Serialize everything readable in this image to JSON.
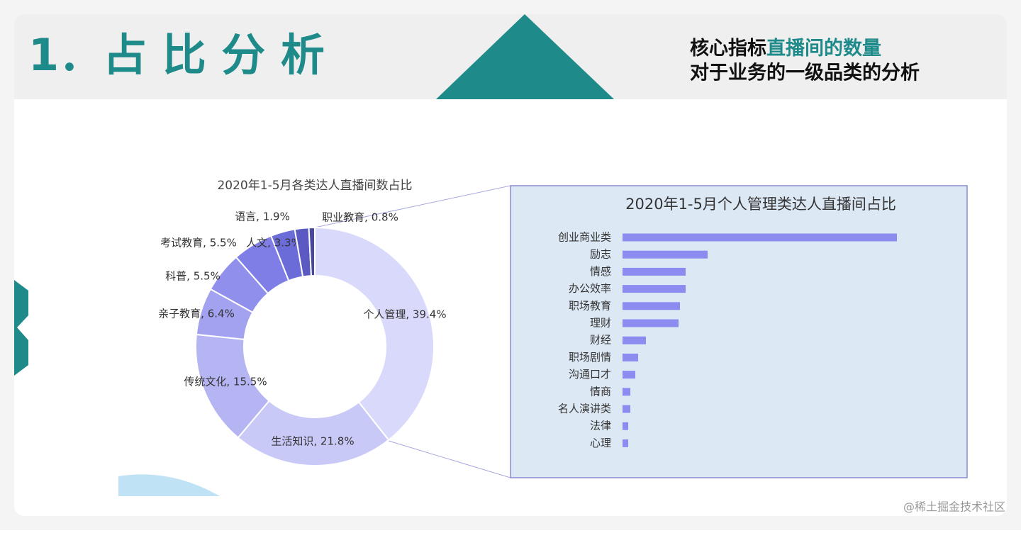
{
  "slide": {
    "title": "1．占 比 分 析",
    "subtitle_lead": "核心指标",
    "subtitle_highlight": "直播间的数量",
    "subtitle_line2": "对于业务的一级品类的分析",
    "watermark": "@稀土掘金技术社区"
  },
  "chart_data": [
    {
      "type": "pie",
      "title": "2020年1-5月各类达人直播间数占比",
      "values": [
        39.4,
        21.8,
        15.5,
        6.4,
        5.5,
        5.5,
        3.3,
        1.9,
        0.8
      ],
      "value_labels": [
        "个人管理, 39.4%",
        "生活知识, 21.8%",
        "传统文化, 15.5%",
        "亲子教育, 6.4%",
        "科普, 5.5%",
        "考试教育, 5.5%",
        "人文, 3.3%",
        "语言, 1.9%",
        "职业教育, 0.8%"
      ],
      "colors": [
        "#d9d9fb",
        "#c9c9f8",
        "#b5b5f4",
        "#a2a2f0",
        "#9090ec",
        "#7e7ee6",
        "#6c6cd8",
        "#5a5ac2",
        "#47479c"
      ]
    },
    {
      "type": "barh",
      "title": "2020年1-5月个人管理类达人直播间占比",
      "categories": [
        "创业商业类",
        "励志",
        "情感",
        "办公效率",
        "职场教育",
        "理财",
        "财经",
        "职场剧情",
        "沟通口才",
        "情商",
        "名人演讲类",
        "法律",
        "心理"
      ],
      "values": [
        387,
        120,
        89,
        89,
        81,
        79,
        33,
        22,
        18,
        11,
        11,
        8,
        8
      ],
      "xlim": [
        0,
        400
      ],
      "color": "#8b8bf0"
    }
  ]
}
